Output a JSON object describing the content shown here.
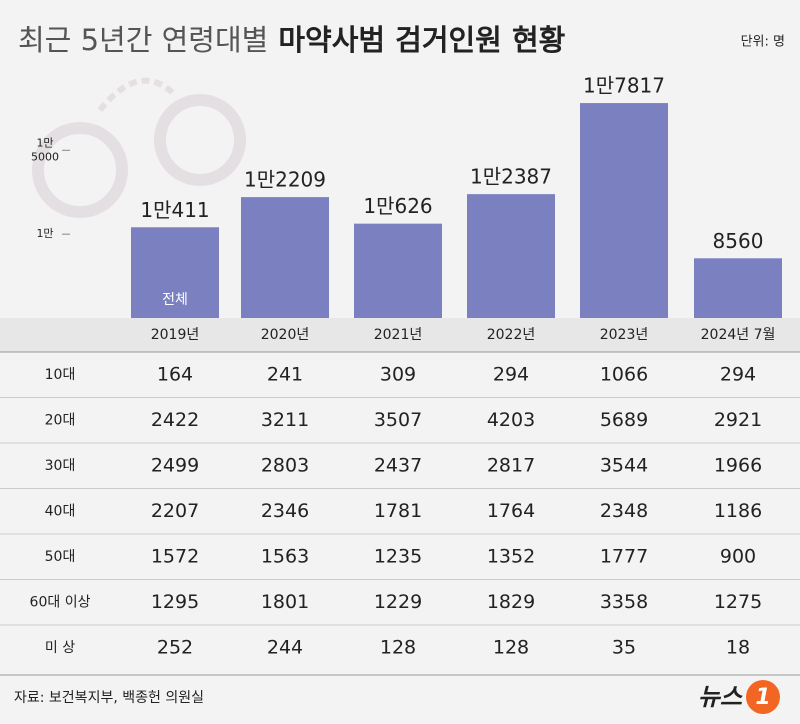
{
  "chart_data": {
    "type": "bar",
    "title": [
      "최근 5년간 연령대별",
      "마약사범 검거인원 현황"
    ],
    "unit": "단위: 명",
    "categories": [
      "2019년",
      "2020년",
      "2021년",
      "2022년",
      "2023년",
      "2024년 7월"
    ],
    "values": [
      10411,
      12209,
      10626,
      12387,
      17817,
      8560
    ],
    "value_labels": [
      "1만411",
      "1만2209",
      "1만626",
      "1만2387",
      "1만7817",
      "8560"
    ],
    "bar_note": "전체",
    "color": "#7a80c0",
    "ylim": [
      5000,
      18000
    ],
    "yticks": [
      {
        "value": 10000,
        "label": "1만"
      },
      {
        "value": 15000,
        "label": "1만\n5000"
      }
    ]
  },
  "table": {
    "rows": [
      {
        "label": "10대",
        "values": [
          164,
          241,
          309,
          294,
          1066,
          294
        ]
      },
      {
        "label": "20대",
        "values": [
          2422,
          3211,
          3507,
          4203,
          5689,
          2921
        ]
      },
      {
        "label": "30대",
        "values": [
          2499,
          2803,
          2437,
          2817,
          3544,
          1966
        ]
      },
      {
        "label": "40대",
        "values": [
          2207,
          2346,
          1781,
          1764,
          2348,
          1186
        ]
      },
      {
        "label": "50대",
        "values": [
          1572,
          1563,
          1235,
          1352,
          1777,
          900
        ]
      },
      {
        "label": "60대 이상",
        "values": [
          1295,
          1801,
          1229,
          1829,
          3358,
          1275
        ]
      },
      {
        "label": "미 상",
        "values": [
          252,
          244,
          128,
          128,
          35,
          18
        ]
      }
    ]
  },
  "source": "자료: 보건복지부, 백종헌 의원실",
  "logo": [
    "뉴스",
    "1"
  ]
}
